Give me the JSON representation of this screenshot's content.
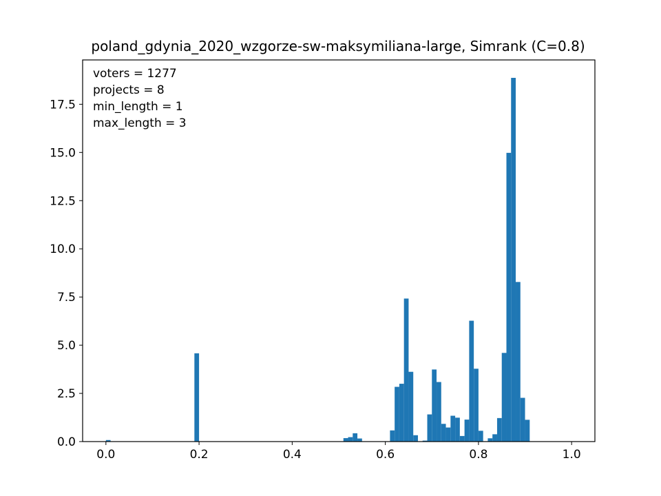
{
  "chart_data": {
    "type": "bar",
    "title": "poland_gdynia_2020_wzgorze-sw-maksymiliana-large, Simrank (C=0.8)",
    "xlabel": "",
    "ylabel": "",
    "xlim": [
      -0.05,
      1.05
    ],
    "ylim": [
      0,
      19.8
    ],
    "bin_width": 0.01,
    "xticks": [
      0.0,
      0.2,
      0.4,
      0.6,
      0.8,
      1.0
    ],
    "xtick_labels": [
      "0.0",
      "0.2",
      "0.4",
      "0.6",
      "0.8",
      "1.0"
    ],
    "yticks": [
      0.0,
      2.5,
      5.0,
      7.5,
      10.0,
      12.5,
      15.0,
      17.5
    ],
    "ytick_labels": [
      "0.0",
      "2.5",
      "5.0",
      "7.5",
      "10.0",
      "12.5",
      "15.0",
      "17.5"
    ],
    "annotations": [
      "voters = 1277",
      "projects = 8",
      "min_length = 1",
      "max_length = 3"
    ],
    "color": "#1f77b4",
    "grid": false,
    "bins": [
      {
        "x": 0.0,
        "value": 0.08
      },
      {
        "x": 0.19,
        "value": 4.58
      },
      {
        "x": 0.51,
        "value": 0.18
      },
      {
        "x": 0.52,
        "value": 0.23
      },
      {
        "x": 0.53,
        "value": 0.43
      },
      {
        "x": 0.54,
        "value": 0.16
      },
      {
        "x": 0.61,
        "value": 0.58
      },
      {
        "x": 0.62,
        "value": 2.84
      },
      {
        "x": 0.63,
        "value": 3.0
      },
      {
        "x": 0.64,
        "value": 7.42
      },
      {
        "x": 0.65,
        "value": 3.62
      },
      {
        "x": 0.66,
        "value": 0.33
      },
      {
        "x": 0.68,
        "value": 0.05
      },
      {
        "x": 0.69,
        "value": 1.41
      },
      {
        "x": 0.7,
        "value": 3.74
      },
      {
        "x": 0.71,
        "value": 3.09
      },
      {
        "x": 0.72,
        "value": 0.92
      },
      {
        "x": 0.73,
        "value": 0.73
      },
      {
        "x": 0.74,
        "value": 1.34
      },
      {
        "x": 0.75,
        "value": 1.24
      },
      {
        "x": 0.76,
        "value": 0.29
      },
      {
        "x": 0.77,
        "value": 1.14
      },
      {
        "x": 0.78,
        "value": 6.27
      },
      {
        "x": 0.79,
        "value": 3.78
      },
      {
        "x": 0.8,
        "value": 0.56
      },
      {
        "x": 0.82,
        "value": 0.17
      },
      {
        "x": 0.83,
        "value": 0.38
      },
      {
        "x": 0.84,
        "value": 1.22
      },
      {
        "x": 0.85,
        "value": 4.6
      },
      {
        "x": 0.86,
        "value": 14.98
      },
      {
        "x": 0.87,
        "value": 18.87
      },
      {
        "x": 0.88,
        "value": 8.28
      },
      {
        "x": 0.89,
        "value": 2.27
      },
      {
        "x": 0.9,
        "value": 1.13
      }
    ]
  }
}
